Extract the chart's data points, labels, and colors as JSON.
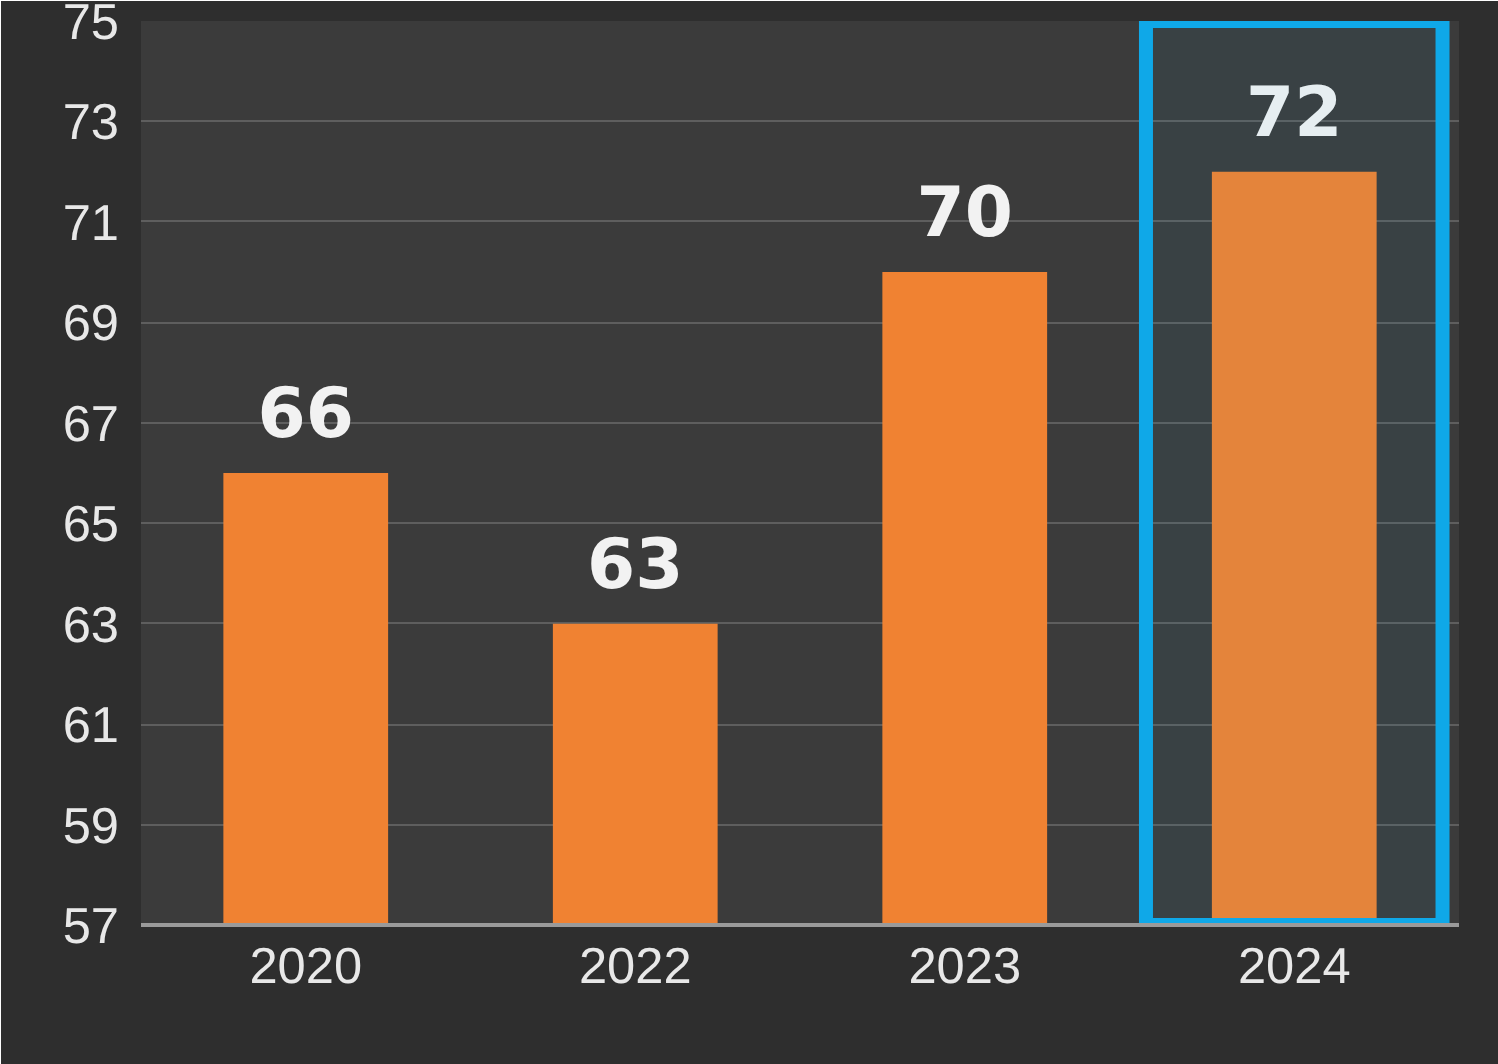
{
  "chart_data": {
    "type": "bar",
    "categories": [
      "2020",
      "2022",
      "2023",
      "2024"
    ],
    "values": [
      66,
      63,
      70,
      72
    ],
    "color": "#f08232",
    "ylim": [
      57,
      75
    ],
    "yticks": [
      57,
      59,
      61,
      63,
      65,
      67,
      69,
      71,
      73,
      75
    ],
    "grid": "y",
    "data_labels": true,
    "bands": [
      {
        "axis": "x",
        "from": "2024",
        "to": "2024",
        "color": "#0fa8e8"
      }
    ]
  }
}
